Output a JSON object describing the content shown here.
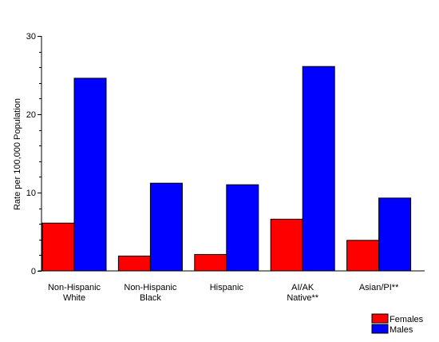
{
  "chart_data": {
    "type": "bar",
    "title": "",
    "xlabel": "",
    "ylabel": "Rate per 100,000 Population",
    "ylim": [
      0,
      30
    ],
    "yticks": [
      0,
      10,
      20,
      30
    ],
    "grid": false,
    "legend_position": "bottom-right",
    "categories": [
      [
        "Non-Hispanic",
        "White"
      ],
      [
        "Non-Hispanic",
        "Black"
      ],
      [
        "Hispanic"
      ],
      [
        "AI/AK",
        "Native**"
      ],
      [
        "Asian/PI**"
      ]
    ],
    "series": [
      {
        "name": "Females",
        "color": "#ff0000",
        "values": [
          6.1,
          1.9,
          2.1,
          6.6,
          3.9
        ]
      },
      {
        "name": "Males",
        "color": "#0000ff",
        "values": [
          24.6,
          11.2,
          11.0,
          26.1,
          9.3
        ]
      }
    ]
  }
}
